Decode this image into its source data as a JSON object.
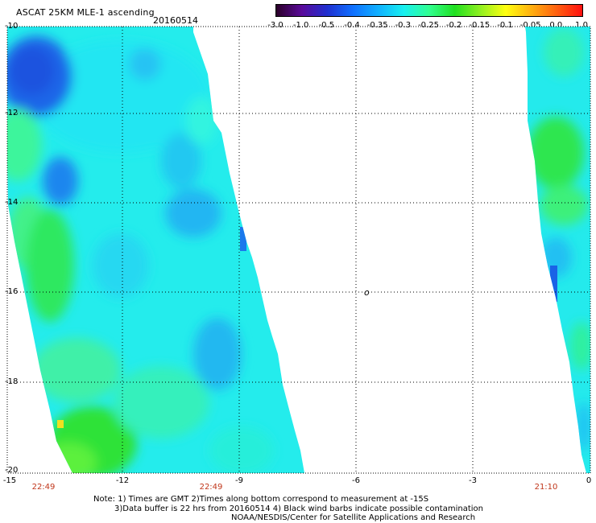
{
  "header": {
    "title": "ASCAT 25KM MLE-1 ascending",
    "date": "20160514"
  },
  "colorbar": {
    "labels": [
      "-3.0",
      "-1.0",
      "-0.5",
      "-0.4",
      "-0.35",
      "-0.3",
      "-0.25",
      "-0.2",
      "-0.15",
      "-0.1",
      "-0.05",
      "0.0",
      "1.0"
    ],
    "colors": [
      "#2b0028",
      "#5a0a9a",
      "#2030d0",
      "#1070ff",
      "#10b0ff",
      "#18f0f0",
      "#30ff90",
      "#20e020",
      "#90f020",
      "#ffff10",
      "#ffb010",
      "#ff6010",
      "#ff1010"
    ]
  },
  "map": {
    "y_axis_labels": [
      "-10",
      "-12",
      "-14",
      "-16",
      "-18",
      "-20"
    ],
    "x_axis_labels": [
      "-15",
      "-12",
      "-9",
      "-6",
      "-3",
      "0"
    ],
    "pass_times": [
      "22:49",
      "22:49",
      "21:10"
    ],
    "marker": "o"
  },
  "notes": {
    "line1": "Note: 1) Times are GMT 2)Times along bottom correspond to measurement at -15S",
    "line2": "3)Data buffer is 22 hrs from 20160514 4) Black wind barbs indicate possible contamination",
    "line3": "NOAA/NESDIS/Center for Satellite Applications and Research"
  }
}
